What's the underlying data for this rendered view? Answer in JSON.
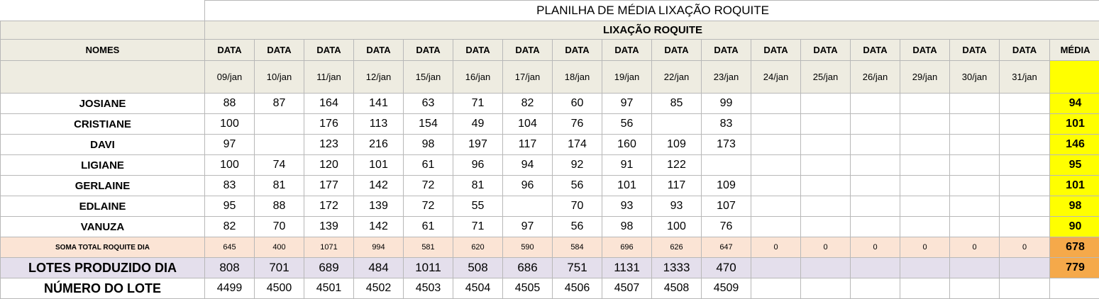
{
  "title": "PLANILHA DE MÉDIA LIXAÇÃO ROQUITE",
  "subtitle": "LIXAÇÃO ROQUITE",
  "nomes_header": "NOMES",
  "media_header": "MÉDIA",
  "data_label": "DATA",
  "dates": [
    "09/jan",
    "10/jan",
    "11/jan",
    "12/jan",
    "15/jan",
    "16/jan",
    "17/jan",
    "18/jan",
    "19/jan",
    "22/jan",
    "23/jan",
    "24/jan",
    "25/jan",
    "26/jan",
    "29/jan",
    "30/jan",
    "31/jan"
  ],
  "rows": [
    {
      "name": "JOSIANE",
      "values": [
        "88",
        "87",
        "164",
        "141",
        "63",
        "71",
        "82",
        "60",
        "97",
        "85",
        "99",
        "",
        "",
        "",
        "",
        "",
        ""
      ],
      "media": "94"
    },
    {
      "name": "CRISTIANE",
      "values": [
        "100",
        "",
        "176",
        "113",
        "154",
        "49",
        "104",
        "76",
        "56",
        "",
        "83",
        "",
        "",
        "",
        "",
        "",
        ""
      ],
      "media": "101"
    },
    {
      "name": "DAVI",
      "values": [
        "97",
        "",
        "123",
        "216",
        "98",
        "197",
        "117",
        "174",
        "160",
        "109",
        "173",
        "",
        "",
        "",
        "",
        "",
        ""
      ],
      "media": "146"
    },
    {
      "name": "LIGIANE",
      "values": [
        "100",
        "74",
        "120",
        "101",
        "61",
        "96",
        "94",
        "92",
        "91",
        "122",
        "",
        "",
        "",
        "",
        "",
        "",
        ""
      ],
      "media": "95"
    },
    {
      "name": "GERLAINE",
      "values": [
        "83",
        "81",
        "177",
        "142",
        "72",
        "81",
        "96",
        "56",
        "101",
        "117",
        "109",
        "",
        "",
        "",
        "",
        "",
        ""
      ],
      "media": "101"
    },
    {
      "name": "EDLAINE",
      "values": [
        "95",
        "88",
        "172",
        "139",
        "72",
        "55",
        "",
        "70",
        "93",
        "93",
        "107",
        "",
        "",
        "",
        "",
        "",
        ""
      ],
      "media": "98"
    },
    {
      "name": "VANUZA",
      "values": [
        "82",
        "70",
        "139",
        "142",
        "61",
        "71",
        "97",
        "56",
        "98",
        "100",
        "76",
        "",
        "",
        "",
        "",
        "",
        ""
      ],
      "media": "90"
    }
  ],
  "soma": {
    "label": "SOMA TOTAL  ROQUITE DIA",
    "values": [
      "645",
      "400",
      "1071",
      "994",
      "581",
      "620",
      "590",
      "584",
      "696",
      "626",
      "647",
      "0",
      "0",
      "0",
      "0",
      "0",
      "0"
    ],
    "media": "678"
  },
  "lotes": {
    "label": "LOTES PRODUZIDO DIA",
    "values": [
      "808",
      "701",
      "689",
      "484",
      "1011",
      "508",
      "686",
      "751",
      "1131",
      "1333",
      "470",
      "",
      "",
      "",
      "",
      "",
      ""
    ],
    "media": "779"
  },
  "numero": {
    "label": "NÚMERO DO LOTE",
    "values": [
      "4499",
      "4500",
      "4501",
      "4502",
      "4503",
      "4504",
      "4505",
      "4506",
      "4507",
      "4508",
      "4509",
      "",
      "",
      "",
      "",
      "",
      ""
    ],
    "media": ""
  }
}
